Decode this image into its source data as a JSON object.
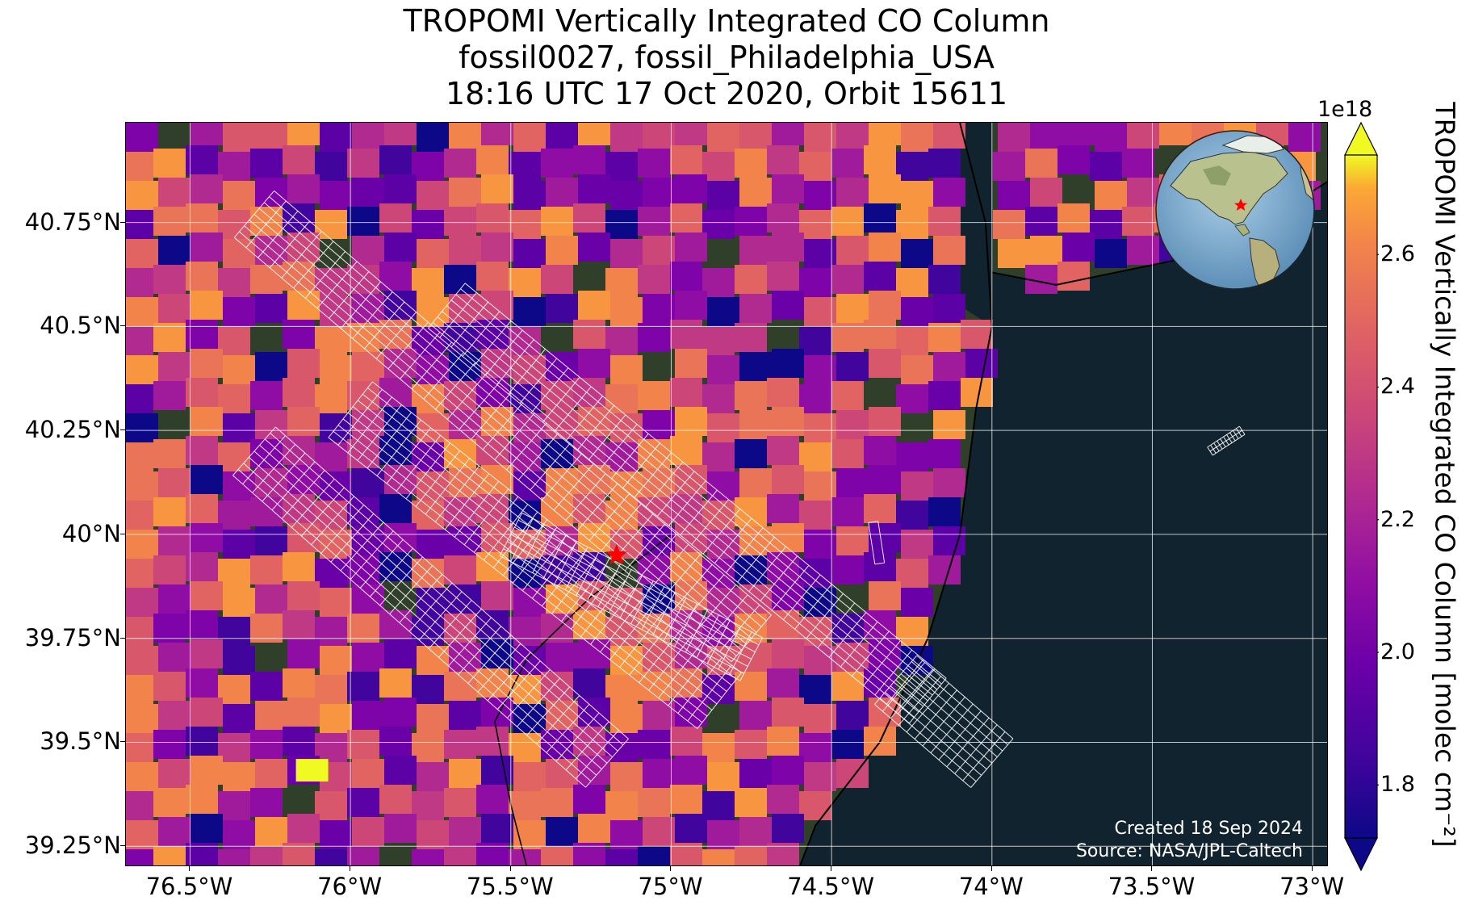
{
  "title": {
    "line1": "TROPOMI Vertically Integrated CO Column",
    "line2": "fossil0027, fossil_Philadelphia_USA",
    "line3": "18:16 UTC 17 Oct 2020, Orbit 15611"
  },
  "map": {
    "lon_range": [
      -76.7,
      -72.95
    ],
    "lat_range": [
      39.2,
      40.99
    ],
    "lat_ticks": [
      {
        "value": 40.75,
        "label": "40.75°N"
      },
      {
        "value": 40.5,
        "label": "40.5°N"
      },
      {
        "value": 40.25,
        "label": "40.25°N"
      },
      {
        "value": 40.0,
        "label": "40°N"
      },
      {
        "value": 39.75,
        "label": "39.75°N"
      },
      {
        "value": 39.5,
        "label": "39.5°N"
      },
      {
        "value": 39.25,
        "label": "39.25°N"
      }
    ],
    "lon_ticks": [
      {
        "value": -76.5,
        "label": "76.5°W"
      },
      {
        "value": -76.0,
        "label": "76°W"
      },
      {
        "value": -75.5,
        "label": "75.5°W"
      },
      {
        "value": -75.0,
        "label": "75°W"
      },
      {
        "value": -74.5,
        "label": "74.5°W"
      },
      {
        "value": -74.0,
        "label": "74°W"
      },
      {
        "value": -73.5,
        "label": "73.5°W"
      },
      {
        "value": -73.0,
        "label": "73°W"
      }
    ],
    "target": {
      "lon": -75.17,
      "lat": 39.95,
      "marker": "red-star",
      "color": "#ff0000"
    },
    "ocean_color": "#10232f",
    "land_color": "#2f3f2a",
    "grid": true
  },
  "colorbar": {
    "label": "TROPOMI Vertically Integrated CO Column [molec cm⁻²]",
    "offset_text": "1e18",
    "range": [
      1.72,
      2.75
    ],
    "ticks": [
      {
        "value": 1.8,
        "label": "1.8"
      },
      {
        "value": 2.0,
        "label": "2.0"
      },
      {
        "value": 2.2,
        "label": "2.2"
      },
      {
        "value": 2.4,
        "label": "2.4"
      },
      {
        "value": 2.6,
        "label": "2.6"
      }
    ],
    "colormap": "plasma",
    "extend": "both"
  },
  "credits": {
    "created": "Created 18 Sep 2024",
    "source": "Source: NASA/JPL-Caltech"
  },
  "inset": {
    "kind": "globe",
    "marker": "red-star"
  }
}
